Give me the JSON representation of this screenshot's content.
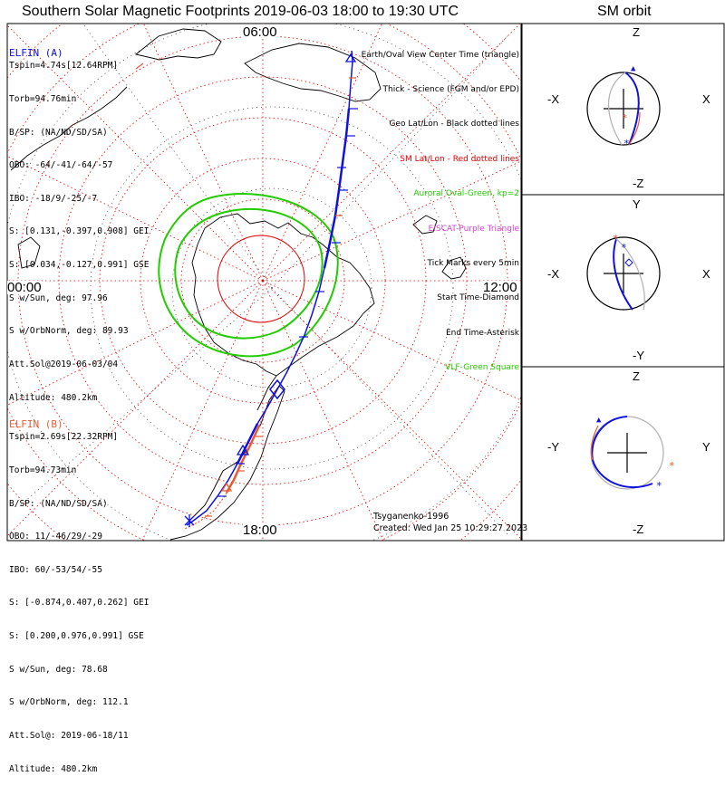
{
  "title": "Southern Solar Magnetic Footprints 2019-06-03 18:00 to 19:30 UTC",
  "sm_orbit_title": "SM orbit",
  "map_labels": {
    "top": "06:00",
    "left": "00:00",
    "right": "12:00",
    "bottom": "18:00"
  },
  "elfin_a": {
    "name": "ELFIN (A)",
    "color": "#1010e0",
    "lines": [
      "Tspin=4.74s[12.64RPM]",
      "Torb=94.76min",
      "B/SP: (NA/ND/SD/SA)",
      "OBO: -64/-41/-64/-57",
      "IBO: -18/9/-25/-7",
      "S: [0.131,-0.397,0.908] GEI",
      "S: [0.034,-0.127,0.991] GSE",
      "S w/Sun, deg: 97.96",
      "S w/OrbNorm, deg: 89.93",
      "Att.Sol@2019-06-03/04",
      "Altitude: 480.2km"
    ]
  },
  "elfin_b": {
    "name": "ELFIN (B)",
    "color": "#e85a30",
    "lines": [
      "Tspin=2.69s[22.32RPM]",
      "Torb=94.73min",
      "B/SP: (NA/ND/SD/SA)",
      "OBO: 11/-46/29/-29",
      "IBO: 60/-53/54/-55",
      "S: [-0.874,0.407,0.262] GEI",
      "S: [0.200,0.976,0.991] GSE",
      "S w/Sun, deg: 78.68",
      "S w/OrbNorm, deg: 112.1",
      "Att.Sol@: 2019-06-18/11",
      "Altitude: 480.2km"
    ]
  },
  "legend": [
    {
      "text": "Earth/Oval View Center Time (triangle)",
      "color": "#000000"
    },
    {
      "text": "Thick - Science (FGM and/or EPD)",
      "color": "#000000"
    },
    {
      "text": "Geo Lat/Lon - Black dotted lines",
      "color": "#000000"
    },
    {
      "text": "SM Lat/Lon - Red dotted lines",
      "color": "#e00000"
    },
    {
      "text": "Auroral Oval-Green, kp=2",
      "color": "#22cc00"
    },
    {
      "text": "EISCAT-Purple Triangle",
      "color": "#cc44cc"
    },
    {
      "text": "Tick Marks every 5min",
      "color": "#000000"
    },
    {
      "text": "Start Time-Diamond",
      "color": "#000000"
    },
    {
      "text": "End Time-Asterisk",
      "color": "#000000"
    },
    {
      "text": "VLF-Green Square",
      "color": "#22cc00"
    }
  ],
  "footer": {
    "model": "Tsyganenko-1996",
    "created": "Created: Wed Jan 25 10:29:27 2023"
  },
  "sm_panels": [
    {
      "top": "Z",
      "bottom": "-Z",
      "left": "-X",
      "right": "X"
    },
    {
      "top": "Y",
      "bottom": "-Y",
      "left": "-X",
      "right": "X"
    },
    {
      "top": "Z",
      "bottom": "-Z",
      "left": "-Y",
      "right": "Y"
    }
  ],
  "colors": {
    "elfin_a": "#1010e0",
    "elfin_b": "#e85a30",
    "sm_grid": "#e00000",
    "auroral_oval": "#22cc00",
    "orbit_gray": "#b0b0b0"
  }
}
